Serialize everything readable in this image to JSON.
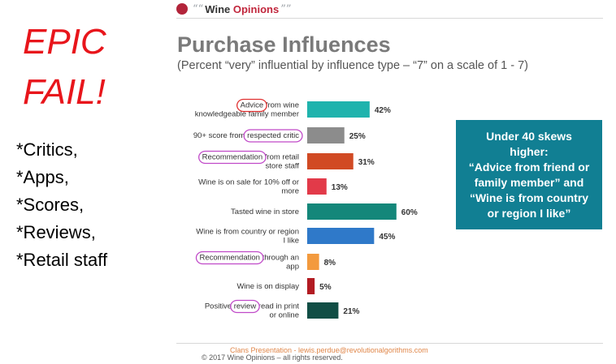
{
  "side_panel": {
    "headline_line1": "EPIC",
    "headline_line2": "FAIL!",
    "notes": [
      "*Critics,",
      "*Apps,",
      "*Scores,",
      "*Reviews,",
      "*Retail staff"
    ]
  },
  "logo": {
    "left_quote": "““",
    "word1": "Wine",
    "word2": "Opinions",
    "right_quote": "””"
  },
  "callout": {
    "text": "Under 40 skews\nhigher:\n“Advice from friend or\nfamily member” and\n“Wine is from country\nor region I like”",
    "color": "#117f93"
  },
  "footer": {
    "line1": "Clans Presentation - lewis.perdue@revolutionalgorithms.com",
    "line2": "© 2017 Wine Opinions – all rights reserved."
  },
  "chart_data": {
    "type": "bar",
    "orientation": "horizontal",
    "title": "Purchase Influences",
    "subtitle": "(Percent “very” influential by influence type – “7” on a scale of 1 - 7)",
    "categories": [
      [
        "Advice from wine",
        "knowledgeable family member"
      ],
      [
        "90+ score from respected critic"
      ],
      [
        "Recommendation from retail",
        "store staff"
      ],
      [
        "Wine is on sale for 10% off or",
        "more"
      ],
      [
        "Tasted wine in store"
      ],
      [
        "Wine is from country or region",
        "I like"
      ],
      [
        "Recommendation through an",
        "app"
      ],
      [
        "Wine is on display"
      ],
      [
        "Positive review read in print",
        "or online"
      ]
    ],
    "values": [
      42,
      25,
      31,
      13,
      60,
      45,
      8,
      5,
      21
    ],
    "value_labels": [
      "42%",
      "25%",
      "31%",
      "13%",
      "60%",
      "45%",
      "8%",
      "5%",
      "21%"
    ],
    "colors": [
      "#1fb3ad",
      "#8c8c8c",
      "#d14a24",
      "#e23a49",
      "#14877a",
      "#2f79c9",
      "#f39a3e",
      "#b21b22",
      "#114e45"
    ],
    "xlim": [
      0,
      100
    ],
    "grid": false,
    "legend": "none",
    "circled_words": [
      {
        "row": 0,
        "word": "Advice",
        "color": "#e03030"
      },
      {
        "row": 1,
        "word": "respected critic",
        "color": "#c049c8"
      },
      {
        "row": 2,
        "word": "Recommendation",
        "color": "#c049c8"
      },
      {
        "row": 6,
        "word": "Recommendation",
        "color": "#c049c8"
      },
      {
        "row": 8,
        "word": "review",
        "color": "#c049c8"
      }
    ]
  }
}
